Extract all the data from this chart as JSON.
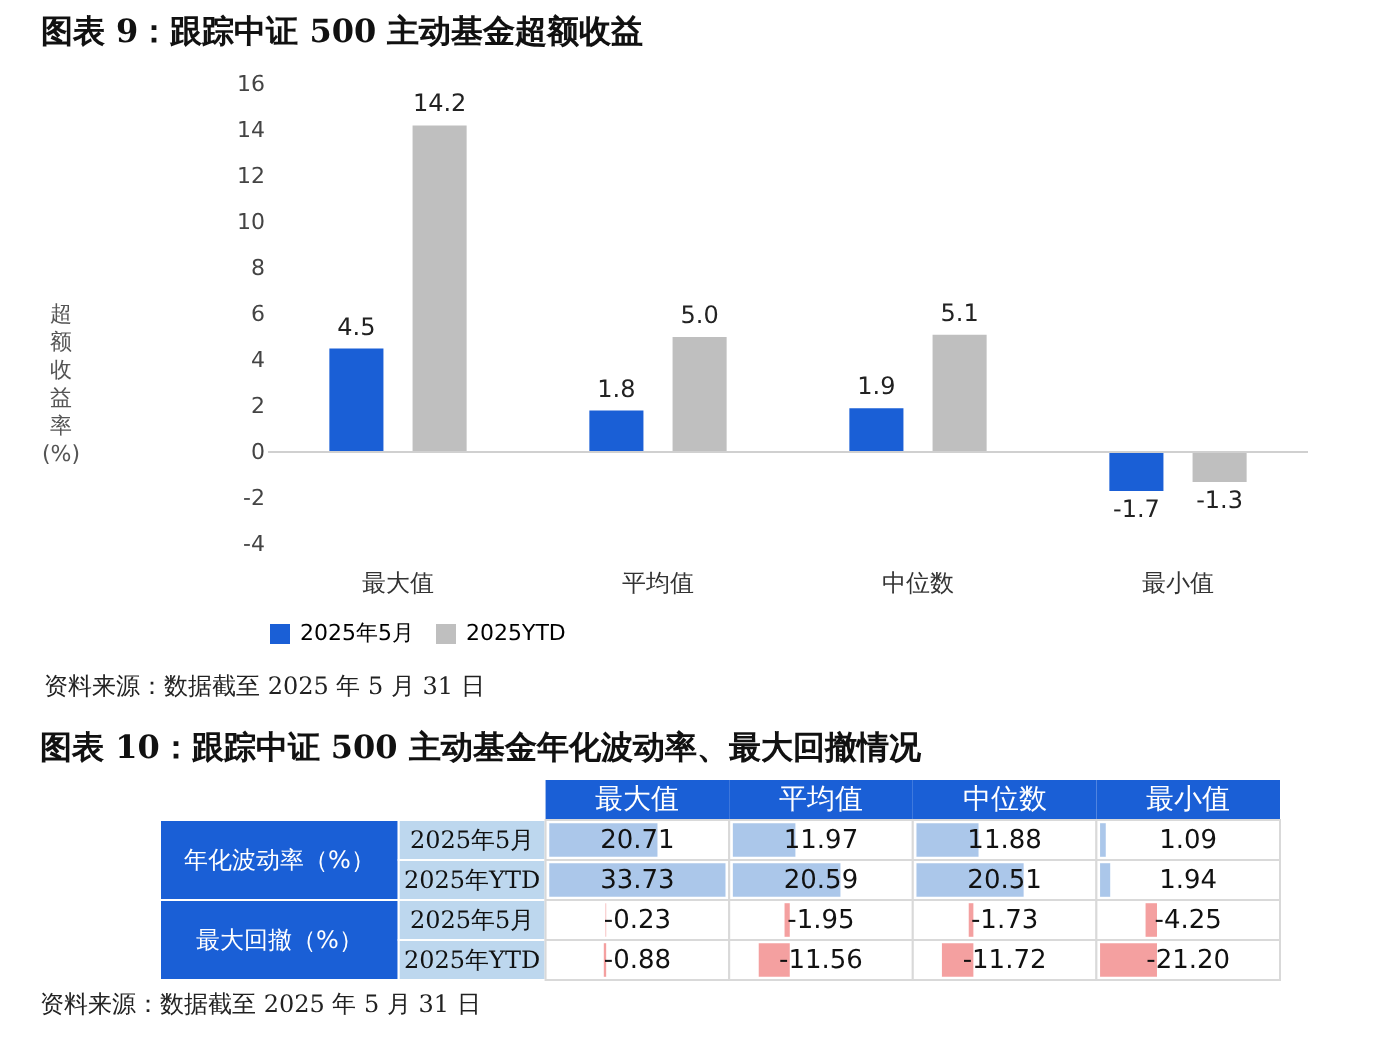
{
  "chart_data": [
    {
      "type": "bar",
      "title": "图表 9：跟踪中证 500 主动基金超额收益",
      "ylabel": "超额收益率(%)",
      "categories": [
        "最大值",
        "平均值",
        "中位数",
        "最小值"
      ],
      "series": [
        {
          "name": "2025年5月",
          "color": "#1a5fd6",
          "values": [
            4.5,
            1.8,
            1.9,
            -1.7
          ],
          "value_labels": [
            "4.5",
            "1.8",
            "1.9",
            "-1.7"
          ]
        },
        {
          "name": "2025YTD",
          "color": "#bfbfbf",
          "values": [
            14.2,
            5.0,
            5.1,
            -1.3
          ],
          "value_labels": [
            "14.2",
            "5.0",
            "5.1",
            "-1.3"
          ]
        }
      ],
      "ylim": [
        -4,
        16
      ],
      "yticks": [
        -4,
        -2,
        0,
        2,
        4,
        6,
        8,
        10,
        12,
        14,
        16
      ],
      "legend": "bottom",
      "annotations": [
        "资料来源：数据截至 2025 年 5 月 31 日"
      ]
    },
    {
      "type": "heatmap",
      "title": "图表 10：跟踪中证 500 主动基金年化波动率、最大回撤情况",
      "categories": [
        "最大值",
        "平均值",
        "中位数",
        "最小值"
      ],
      "y_categories": [
        "2025年5月",
        "2025年YTD",
        "2025年5月",
        "2025年YTD"
      ],
      "cells": [
        [
          20.71,
          11.97,
          11.88,
          1.09
        ],
        [
          33.73,
          20.59,
          20.51,
          1.94
        ],
        [
          -0.23,
          -1.95,
          -1.73,
          -4.25
        ],
        [
          -0.88,
          -11.56,
          -11.72,
          -21.2
        ]
      ],
      "cell_labels": [
        [
          "20.71",
          "11.97",
          "11.88",
          "1.09"
        ],
        [
          "33.73",
          "20.59",
          "20.51",
          "1.94"
        ],
        [
          "-0.23",
          "-1.95",
          "-1.73",
          "-4.25"
        ],
        [
          "-0.88",
          "-11.56",
          "-11.72",
          "-21.20"
        ]
      ],
      "annotations": [
        "年化波动率（%）",
        "最大回撤（%）",
        "资料来源：数据截至 2025 年 5 月 31 日"
      ]
    }
  ]
}
